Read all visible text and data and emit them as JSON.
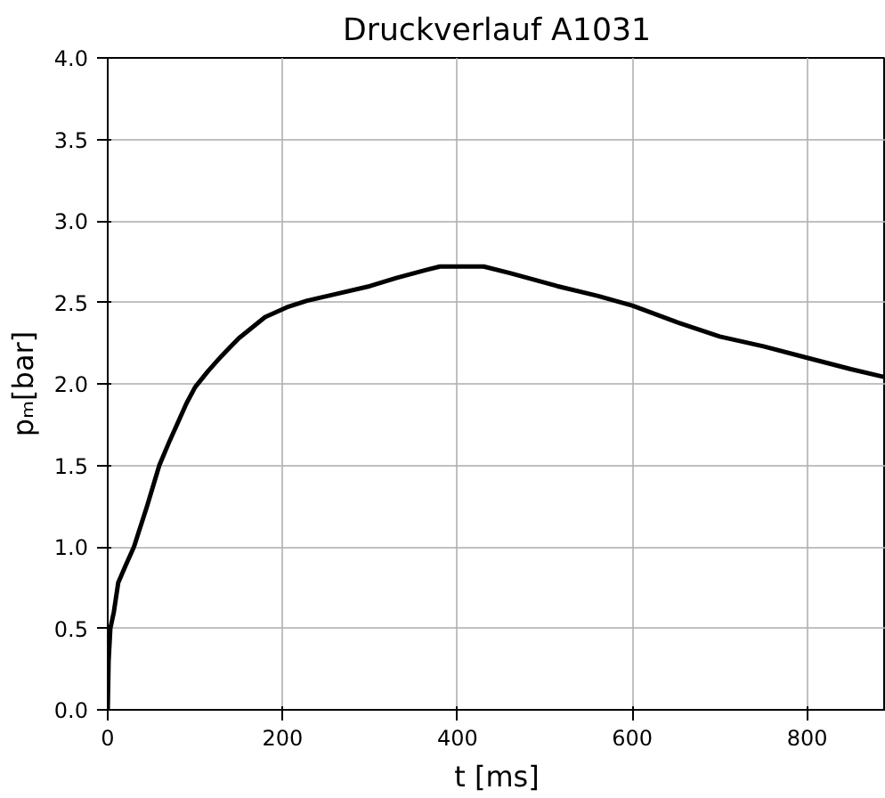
{
  "chart_data": {
    "type": "line",
    "title": "Druckverlauf A1031",
    "xlabel": "t [ms]",
    "ylabel": "pₘ[bar]",
    "x": [
      0,
      1,
      3,
      7,
      12,
      20,
      30,
      45,
      59,
      70,
      80,
      90,
      100,
      115,
      130,
      150,
      180,
      205,
      228,
      260,
      300,
      330,
      365,
      380,
      400,
      430,
      460,
      514,
      560,
      600,
      650,
      700,
      750,
      800,
      850,
      890
    ],
    "series": [
      {
        "color": "#000000",
        "values": [
          0,
          0.3,
          0.5,
          0.6,
          0.78,
          0.88,
          1.0,
          1.25,
          1.5,
          1.64,
          1.76,
          1.88,
          1.98,
          2.08,
          2.17,
          2.28,
          2.41,
          2.47,
          2.51,
          2.55,
          2.6,
          2.65,
          2.7,
          2.72,
          2.72,
          2.72,
          2.68,
          2.6,
          2.54,
          2.48,
          2.38,
          2.29,
          2.23,
          2.16,
          2.09,
          2.04
        ]
      }
    ],
    "xlim": [
      0,
      890
    ],
    "ylim": [
      0,
      4
    ],
    "xticks": [
      0,
      200,
      400,
      600,
      800
    ],
    "yticks": [
      {
        "value": 0,
        "label": "0.0"
      },
      0.5,
      {
        "value": 1,
        "label": "1.0"
      },
      1.5,
      {
        "value": 2,
        "label": "2.0"
      },
      2.5,
      {
        "value": 3,
        "label": "3.0"
      },
      3.5,
      {
        "value": 4,
        "label": "4.0"
      }
    ],
    "grid": true
  }
}
